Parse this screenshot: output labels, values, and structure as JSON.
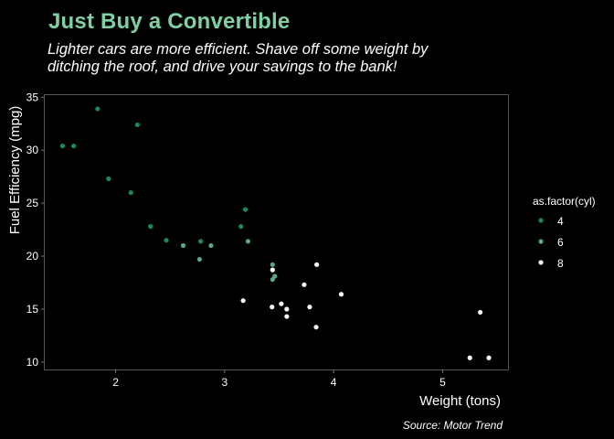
{
  "chart_data": {
    "type": "scatter",
    "title": "Just Buy a Convertible",
    "subtitle": "Lighter cars are more efficient. Shave off some weight by\nditching the roof, and drive your savings to the bank!",
    "xlabel": "Weight (tons)",
    "ylabel": "Fuel Efficiency (mpg)",
    "caption": "Source: Motor Trend",
    "xlim": [
      1.35,
      5.6
    ],
    "ylim": [
      9.3,
      35.2
    ],
    "xticks": [
      2,
      3,
      4,
      5
    ],
    "yticks": [
      10,
      15,
      20,
      25,
      30,
      35
    ],
    "grid": false,
    "legend": {
      "title": "as.factor(cyl)",
      "position": "right",
      "entries": [
        "4",
        "6",
        "8"
      ]
    },
    "series": [
      {
        "name": "4",
        "color": "#1b8a5a",
        "points": [
          [
            2.32,
            22.8
          ],
          [
            3.19,
            24.4
          ],
          [
            3.15,
            22.8
          ],
          [
            2.2,
            32.4
          ],
          [
            1.615,
            30.4
          ],
          [
            1.835,
            33.9
          ],
          [
            2.465,
            21.5
          ],
          [
            1.935,
            27.3
          ],
          [
            2.14,
            26.0
          ],
          [
            1.513,
            30.4
          ],
          [
            2.78,
            21.4
          ]
        ]
      },
      {
        "name": "6",
        "color": "#5fa485",
        "points": [
          [
            2.62,
            21.0
          ],
          [
            2.875,
            21.0
          ],
          [
            3.215,
            21.4
          ],
          [
            3.46,
            18.1
          ],
          [
            3.44,
            19.2
          ],
          [
            3.44,
            17.8
          ],
          [
            2.77,
            19.7
          ]
        ]
      },
      {
        "name": "8",
        "color": "#f5f5f5",
        "points": [
          [
            3.44,
            18.7
          ],
          [
            3.57,
            14.3
          ],
          [
            4.07,
            16.4
          ],
          [
            3.73,
            17.3
          ],
          [
            3.78,
            15.2
          ],
          [
            5.25,
            10.4
          ],
          [
            5.424,
            10.4
          ],
          [
            5.345,
            14.7
          ],
          [
            3.52,
            15.5
          ],
          [
            3.435,
            15.2
          ],
          [
            3.84,
            13.3
          ],
          [
            3.845,
            19.2
          ],
          [
            3.17,
            15.8
          ],
          [
            3.57,
            15.0
          ]
        ]
      }
    ]
  }
}
